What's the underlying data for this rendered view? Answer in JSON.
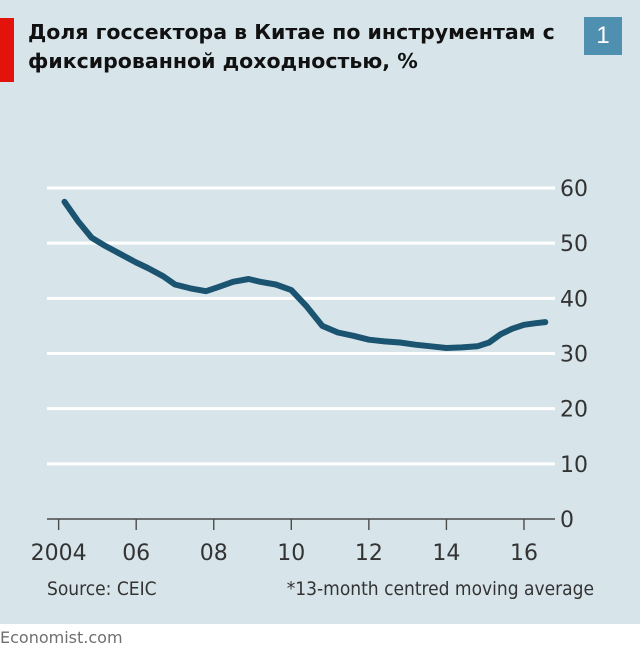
{
  "header": {
    "title": "Доля госсектора в Китае по инструментам с фиксированной доходностью, %",
    "badge": "1"
  },
  "chart_data": {
    "type": "line",
    "title": "Доля госсектора в Китае по инструментам с фиксированной доходностью, %",
    "xlabel": "",
    "ylabel": "",
    "x_tick_labels": [
      "2004",
      "06",
      "08",
      "10",
      "12",
      "14",
      "16"
    ],
    "x_tick_values": [
      2004,
      2006,
      2008,
      2010,
      2012,
      2014,
      2016
    ],
    "y_ticks": [
      0,
      10,
      20,
      30,
      40,
      50,
      60
    ],
    "xlim": [
      2003.7,
      2016.8
    ],
    "ylim": [
      0,
      60
    ],
    "grid": true,
    "y_axis_side": "right",
    "line_color": "#1b5470",
    "series": [
      {
        "name": "",
        "x": [
          2004.15,
          2004.5,
          2004.85,
          2005.2,
          2005.6,
          2006.0,
          2006.3,
          2006.7,
          2007.0,
          2007.4,
          2007.8,
          2008.1,
          2008.5,
          2008.9,
          2009.2,
          2009.6,
          2010.0,
          2010.4,
          2010.8,
          2011.2,
          2011.6,
          2012.0,
          2012.4,
          2012.8,
          2013.2,
          2013.6,
          2014.0,
          2014.4,
          2014.8,
          2015.1,
          2015.4,
          2015.7,
          2016.0,
          2016.3,
          2016.55
        ],
        "y": [
          57.5,
          54,
          51,
          49.5,
          48,
          46.5,
          45.5,
          44,
          42.5,
          41.8,
          41.3,
          42,
          43,
          43.5,
          43,
          42.5,
          41.5,
          38.5,
          35,
          33.8,
          33.2,
          32.5,
          32.2,
          32.0,
          31.6,
          31.3,
          31.0,
          31.1,
          31.3,
          32.0,
          33.5,
          34.5,
          35.2,
          35.5,
          35.7
        ]
      }
    ]
  },
  "footer": {
    "source": "Source: CEIC",
    "note": "*13-month centred moving average",
    "brand": "Economist.com"
  }
}
